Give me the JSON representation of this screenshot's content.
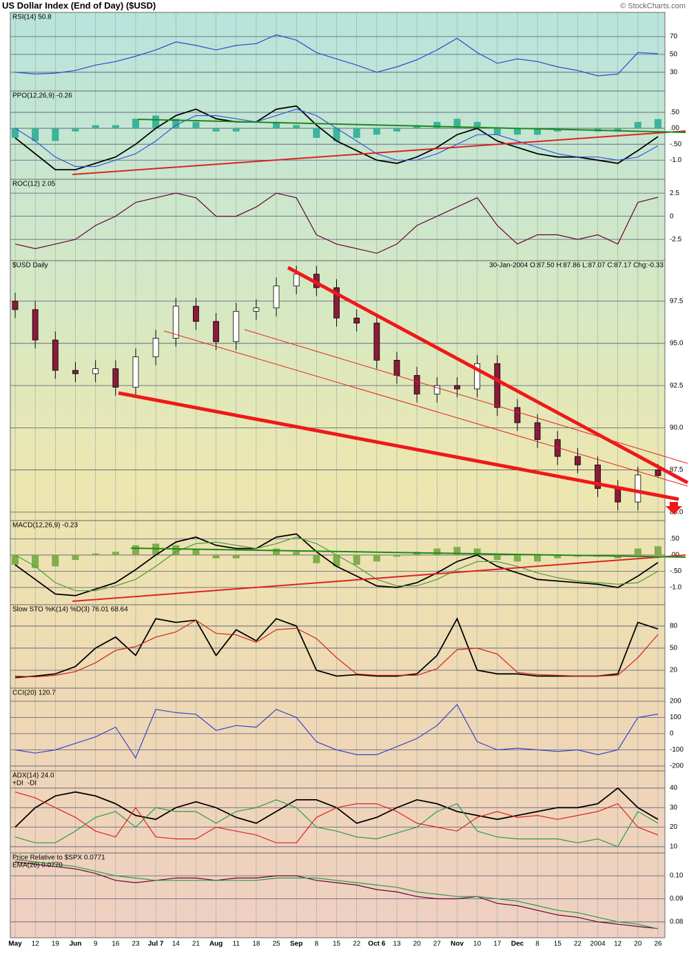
{
  "header": {
    "title": "US Dollar Index (End of Day) ($USD)",
    "source": "© StockCharts.com"
  },
  "chart_data": [
    {
      "type": "line",
      "title": "RSI(14) 50.8",
      "ylim": [
        9,
        97
      ],
      "yticks": [
        70,
        50,
        30
      ],
      "series": [
        {
          "color": "#3344cc",
          "values": [
            30,
            28,
            29,
            32,
            38,
            42,
            48,
            55,
            64,
            60,
            55,
            60,
            62,
            72,
            66,
            52,
            45,
            38,
            30,
            36,
            44,
            55,
            68,
            52,
            40,
            45,
            42,
            36,
            32,
            26,
            28,
            52,
            50.8
          ]
        }
      ]
    },
    {
      "type": "line",
      "title": "PPO(12,26,9) -0.26",
      "ylim": [
        -1.6,
        1.17
      ],
      "yticks": [
        {
          "value": 0.5,
          "label": ".50"
        },
        {
          "value": 0,
          "label": ".00"
        },
        {
          "value": -0.5,
          "label": "-.50"
        },
        {
          "value": -1,
          "label": "-1.0"
        }
      ],
      "series": [
        {
          "type": "bar",
          "color": "#3cb39a",
          "values": [
            -0.3,
            -0.4,
            -0.4,
            -0.1,
            0.1,
            0.1,
            0.3,
            0.4,
            0.3,
            0.2,
            -0.1,
            -0.1,
            0,
            0.2,
            0.1,
            -0.3,
            -0.4,
            -0.3,
            -0.2,
            -0.1,
            0.1,
            0.2,
            0.3,
            0.2,
            -0.2,
            -0.2,
            -0.2,
            -0.1,
            0,
            -0.1,
            -0.1,
            0.2,
            0.29
          ]
        },
        {
          "color": "#000000",
          "values": [
            -0.3,
            -0.8,
            -1.3,
            -1.3,
            -1.1,
            -0.9,
            -0.5,
            0,
            0.4,
            0.6,
            0.3,
            0.2,
            0.2,
            0.6,
            0.7,
            0.1,
            -0.4,
            -0.7,
            -1.0,
            -1.1,
            -0.9,
            -0.6,
            -0.2,
            0,
            -0.4,
            -0.6,
            -0.8,
            -0.9,
            -0.9,
            -1.0,
            -1.1,
            -0.7,
            -0.26
          ]
        },
        {
          "color": "#3355dd",
          "values": [
            0,
            -0.4,
            -0.9,
            -1.2,
            -1.2,
            -1.0,
            -0.8,
            -0.4,
            0.1,
            0.4,
            0.4,
            0.3,
            0.2,
            0.4,
            0.6,
            0.4,
            0,
            -0.4,
            -0.8,
            -1.0,
            -1.0,
            -0.8,
            -0.5,
            -0.2,
            -0.2,
            -0.4,
            -0.6,
            -0.8,
            -0.9,
            -0.9,
            -1.0,
            -0.9,
            -0.55
          ]
        }
      ]
    },
    {
      "type": "line",
      "title": "ROC(12) 2.05",
      "ylim": [
        -4.8,
        4.0
      ],
      "yticks": [
        2.5,
        0,
        -2.5
      ],
      "series": [
        {
          "color": "#660033",
          "values": [
            -3,
            -3.5,
            -3,
            -2.5,
            -1,
            0,
            1.5,
            2,
            2.5,
            2,
            0,
            0,
            1,
            2.5,
            2,
            -2,
            -3,
            -3.5,
            -4,
            -3,
            -1,
            0,
            1,
            2,
            -1,
            -3,
            -2,
            -2,
            -2.5,
            -2,
            -3,
            1.5,
            2.05
          ]
        }
      ]
    },
    {
      "type": "candlestick",
      "title": "$USD Daily",
      "subtitle": "30-Jan-2004  O:87.50  H:87.86  L:87.07  C:87.17  Chg:-0.33",
      "ylim": [
        84.5,
        99.9
      ],
      "yticks": [
        97.5,
        {
          "value": 95,
          "label": "95.0"
        },
        92.5,
        {
          "value": 90,
          "label": "90.0"
        },
        87.5,
        {
          "value": 85,
          "label": "85.0"
        }
      ],
      "up_color": "#ffffff",
      "down_color": "#8b1a3a",
      "open": [
        97.5,
        97.0,
        95.2,
        93.4,
        93.2,
        93.5,
        92.4,
        94.2,
        95.3,
        97.2,
        96.3,
        95.1,
        96.9,
        97.1,
        98.4,
        99.1,
        98.3,
        96.5,
        96.2,
        94.0,
        93.1,
        92.0,
        92.5,
        92.3,
        93.8,
        91.2,
        90.3,
        89.3,
        88.3,
        87.8,
        86.4,
        85.6,
        87.5
      ],
      "high": [
        98.0,
        97.5,
        95.7,
        93.9,
        94.0,
        94.0,
        94.7,
        95.8,
        97.7,
        97.7,
        96.8,
        97.4,
        97.6,
        98.9,
        99.6,
        99.6,
        98.8,
        97.0,
        96.7,
        94.5,
        93.6,
        93.0,
        93.0,
        94.3,
        94.3,
        91.7,
        90.8,
        89.8,
        88.8,
        88.3,
        86.9,
        87.7,
        87.86
      ],
      "low": [
        96.5,
        94.7,
        92.9,
        92.7,
        92.7,
        91.9,
        91.9,
        93.7,
        94.8,
        95.8,
        94.6,
        94.6,
        96.4,
        96.6,
        97.9,
        97.8,
        96.0,
        95.7,
        93.5,
        92.6,
        91.5,
        91.5,
        91.8,
        91.8,
        90.7,
        89.8,
        88.8,
        87.8,
        87.3,
        85.9,
        85.1,
        85.1,
        87.07
      ],
      "close": [
        97.0,
        95.2,
        93.4,
        93.2,
        93.5,
        92.4,
        94.2,
        95.3,
        97.2,
        96.3,
        95.1,
        96.9,
        97.1,
        98.4,
        99.1,
        98.3,
        96.5,
        96.2,
        94.0,
        93.1,
        92.0,
        92.5,
        92.3,
        93.8,
        91.2,
        90.3,
        89.3,
        88.3,
        87.8,
        86.4,
        85.6,
        87.2,
        87.17
      ]
    },
    {
      "type": "line",
      "title": "MACD(12,26,9) -0.23",
      "ylim": [
        -1.53,
        1.06
      ],
      "yticks": [
        {
          "value": 0.5,
          "label": ".50"
        },
        {
          "value": 0,
          "label": ".00"
        },
        {
          "value": -0.5,
          "label": "-.50"
        },
        {
          "value": -1,
          "label": "-1.0"
        }
      ],
      "series": [
        {
          "type": "bar",
          "color": "#7fae4a",
          "values": [
            -0.3,
            -0.4,
            -0.35,
            -0.15,
            0.05,
            0.1,
            0.3,
            0.35,
            0.3,
            0.2,
            -0.1,
            -0.1,
            0,
            0.2,
            0.1,
            -0.25,
            -0.35,
            -0.3,
            -0.2,
            -0.05,
            0.1,
            0.2,
            0.25,
            0.2,
            -0.15,
            -0.2,
            -0.2,
            -0.1,
            -0.05,
            -0.05,
            -0.1,
            0.2,
            0.27
          ]
        },
        {
          "color": "#000000",
          "values": [
            -0.3,
            -0.75,
            -1.2,
            -1.25,
            -1.05,
            -0.85,
            -0.45,
            0,
            0.4,
            0.55,
            0.3,
            0.2,
            0.2,
            0.55,
            0.65,
            0.1,
            -0.35,
            -0.65,
            -0.95,
            -1.0,
            -0.85,
            -0.55,
            -0.2,
            0,
            -0.35,
            -0.55,
            -0.75,
            -0.8,
            -0.85,
            -0.9,
            -1.0,
            -0.65,
            -0.23
          ]
        },
        {
          "color": "#4a9a3a",
          "values": [
            0,
            -0.35,
            -0.85,
            -1.1,
            -1.1,
            -0.95,
            -0.75,
            -0.35,
            0.1,
            0.35,
            0.4,
            0.3,
            0.2,
            0.35,
            0.55,
            0.35,
            0,
            -0.35,
            -0.75,
            -0.95,
            -0.95,
            -0.75,
            -0.45,
            -0.2,
            -0.2,
            -0.35,
            -0.55,
            -0.7,
            -0.8,
            -0.85,
            -0.9,
            -0.85,
            -0.5
          ]
        }
      ]
    },
    {
      "type": "line",
      "title": "Slow STO %K(14) %D(3) 76.01 68.64",
      "ylim": [
        -4.4,
        109
      ],
      "yticks": [
        80,
        50,
        20
      ],
      "series": [
        {
          "color": "#000000",
          "values": [
            10,
            12,
            15,
            25,
            50,
            65,
            40,
            90,
            85,
            88,
            40,
            75,
            60,
            90,
            80,
            20,
            12,
            14,
            12,
            12,
            15,
            40,
            90,
            20,
            15,
            15,
            12,
            12,
            12,
            12,
            15,
            85,
            76.01
          ]
        },
        {
          "color": "#cc2222",
          "values": [
            12,
            11,
            13,
            18,
            30,
            47,
            52,
            65,
            72,
            88,
            70,
            68,
            58,
            75,
            77,
            63,
            37,
            15,
            13,
            13,
            13,
            22,
            48,
            50,
            42,
            17,
            14,
            13,
            12,
            12,
            13,
            37,
            68.64
          ]
        }
      ]
    },
    {
      "type": "line",
      "title": "CCI(20) 120.7",
      "ylim": [
        -230,
        281
      ],
      "yticks": [
        200,
        100,
        0,
        -100,
        -200
      ],
      "series": [
        {
          "color": "#3344cc",
          "values": [
            -100,
            -120,
            -100,
            -60,
            -20,
            40,
            -150,
            150,
            130,
            120,
            20,
            50,
            40,
            150,
            100,
            -50,
            -100,
            -130,
            -130,
            -80,
            -30,
            50,
            180,
            -50,
            -100,
            -90,
            -100,
            -110,
            -100,
            -130,
            -100,
            100,
            120.7
          ]
        }
      ]
    },
    {
      "type": "line",
      "title": "ADX(14) 24.0",
      "ylim": [
        6.8,
        48.8
      ],
      "yticks": [
        40,
        30,
        20,
        10
      ],
      "series": [
        {
          "color": "#000000",
          "values": [
            20,
            30,
            36,
            38,
            36,
            32,
            26,
            24,
            30,
            33,
            30,
            25,
            22,
            28,
            34,
            34,
            30,
            22,
            25,
            30,
            34,
            32,
            28,
            26,
            24,
            26,
            28,
            30,
            30,
            32,
            40,
            30,
            24
          ]
        },
        {
          "name": "+DI",
          "color": "#2a9a4a",
          "values": [
            15,
            12,
            12,
            18,
            25,
            28,
            20,
            30,
            28,
            28,
            22,
            28,
            30,
            34,
            30,
            20,
            18,
            15,
            14,
            17,
            20,
            28,
            32,
            18,
            15,
            14,
            14,
            14,
            12,
            14,
            10,
            28,
            22
          ]
        },
        {
          "name": "-DI",
          "color": "#dd2222",
          "values": [
            38,
            35,
            30,
            25,
            18,
            15,
            30,
            15,
            14,
            14,
            20,
            18,
            16,
            12,
            12,
            25,
            30,
            32,
            32,
            28,
            22,
            20,
            18,
            25,
            28,
            25,
            26,
            24,
            26,
            28,
            32,
            20,
            16
          ]
        }
      ]
    },
    {
      "type": "line",
      "title": "Price Relative to $SPX 0.0771",
      "ylim": [
        0.0731,
        0.1099
      ],
      "yticks": [
        {
          "value": 0.1,
          "label": "0.10"
        },
        0.09,
        0.08
      ],
      "categories": [
        "May",
        "12",
        "19",
        "Jun",
        "9",
        "16",
        "23",
        "Jul 7",
        "14",
        "21",
        "Aug",
        "11",
        "18",
        "25",
        "Sep",
        "8",
        "15",
        "22",
        "Oct 6",
        "13",
        "20",
        "27",
        "Nov",
        "10",
        "17",
        "Dec",
        "8",
        "15",
        "22",
        "2004",
        "12",
        "20",
        "26"
      ],
      "series": [
        {
          "color": "#660033",
          "values": [
            0.106,
            0.105,
            0.104,
            0.103,
            0.101,
            0.098,
            0.097,
            0.098,
            0.099,
            0.099,
            0.098,
            0.099,
            0.099,
            0.1,
            0.1,
            0.098,
            0.097,
            0.096,
            0.094,
            0.093,
            0.091,
            0.09,
            0.09,
            0.091,
            0.088,
            0.087,
            0.085,
            0.083,
            0.082,
            0.08,
            0.079,
            0.078,
            0.0771
          ]
        },
        {
          "name": "EMA(20) 0.0770",
          "color": "#2a9a4a",
          "values": [
            0.107,
            0.106,
            0.105,
            0.104,
            0.102,
            0.1,
            0.099,
            0.098,
            0.098,
            0.098,
            0.098,
            0.098,
            0.098,
            0.099,
            0.099,
            0.099,
            0.098,
            0.097,
            0.096,
            0.095,
            0.093,
            0.092,
            0.091,
            0.091,
            0.09,
            0.089,
            0.087,
            0.085,
            0.084,
            0.082,
            0.08,
            0.079,
            0.077
          ]
        }
      ]
    }
  ]
}
